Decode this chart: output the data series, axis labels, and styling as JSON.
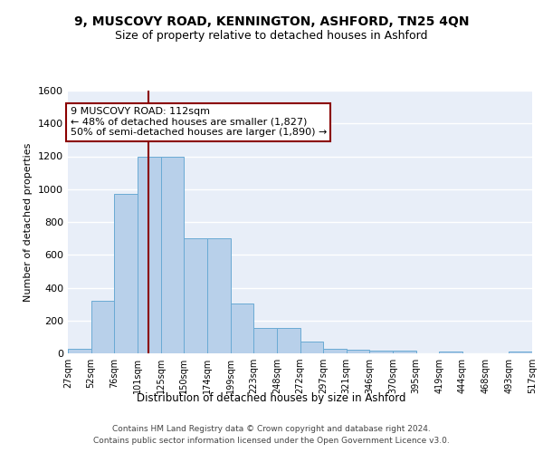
{
  "title": "9, MUSCOVY ROAD, KENNINGTON, ASHFORD, TN25 4QN",
  "subtitle": "Size of property relative to detached houses in Ashford",
  "xlabel": "Distribution of detached houses by size in Ashford",
  "ylabel": "Number of detached properties",
  "footer1": "Contains HM Land Registry data © Crown copyright and database right 2024.",
  "footer2": "Contains public sector information licensed under the Open Government Licence v3.0.",
  "bar_values": [
    30,
    320,
    970,
    1195,
    1195,
    700,
    700,
    305,
    155,
    155,
    70,
    30,
    22,
    15,
    15,
    0,
    10,
    0,
    0,
    10
  ],
  "bin_labels": [
    "27sqm",
    "52sqm",
    "76sqm",
    "101sqm",
    "125sqm",
    "150sqm",
    "174sqm",
    "199sqm",
    "223sqm",
    "248sqm",
    "272sqm",
    "297sqm",
    "321sqm",
    "346sqm",
    "370sqm",
    "395sqm",
    "419sqm",
    "444sqm",
    "468sqm",
    "493sqm",
    "517sqm"
  ],
  "bar_color": "#b8d0ea",
  "bar_edge_color": "#6aaad4",
  "bg_color": "#e8eef8",
  "grid_color": "#ffffff",
  "property_line_color": "#8b0000",
  "annotation_line1": "9 MUSCOVY ROAD: 112sqm",
  "annotation_line2": "← 48% of detached houses are smaller (1,827)",
  "annotation_line3": "50% of semi-detached houses are larger (1,890) →",
  "annotation_box_edge": "#8b0000",
  "ylim_max": 1600,
  "ytick_step": 200,
  "title_fontsize": 10,
  "subtitle_fontsize": 9,
  "ylabel_fontsize": 8,
  "xlabel_fontsize": 8.5,
  "annotation_fontsize": 8,
  "footer_fontsize": 6.5
}
